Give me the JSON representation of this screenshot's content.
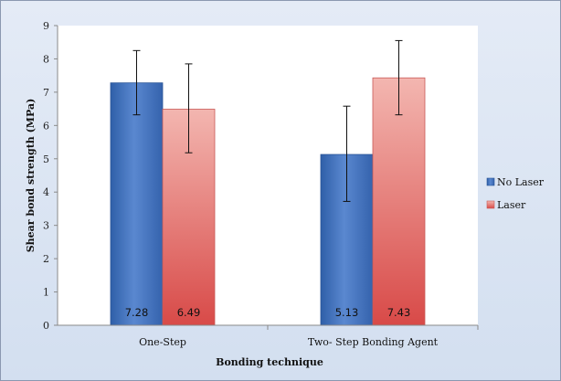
{
  "chart_data": {
    "type": "bar",
    "title": "",
    "xlabel": "Bonding technique",
    "ylabel": "Shear bond strength (MPa)",
    "ylim": [
      0,
      9
    ],
    "yticks": [
      0,
      1,
      2,
      3,
      4,
      5,
      6,
      7,
      8,
      9
    ],
    "categories": [
      "One-Step",
      "Two- Step Bonding Agent"
    ],
    "series": [
      {
        "name": "No Laser",
        "values": [
          7.28,
          5.13
        ],
        "value_labels": [
          "7.28",
          "5.13"
        ],
        "error_low": [
          6.32,
          3.72
        ],
        "error_high": [
          8.25,
          6.58
        ],
        "color": "#4472c4"
      },
      {
        "name": "Laser",
        "values": [
          6.49,
          7.43
        ],
        "value_labels": [
          "6.49",
          "7.43"
        ],
        "error_low": [
          5.18,
          6.32
        ],
        "error_high": [
          7.85,
          8.55
        ],
        "color": "#e46a6a"
      }
    ],
    "grid": false,
    "legend_position": "right"
  }
}
